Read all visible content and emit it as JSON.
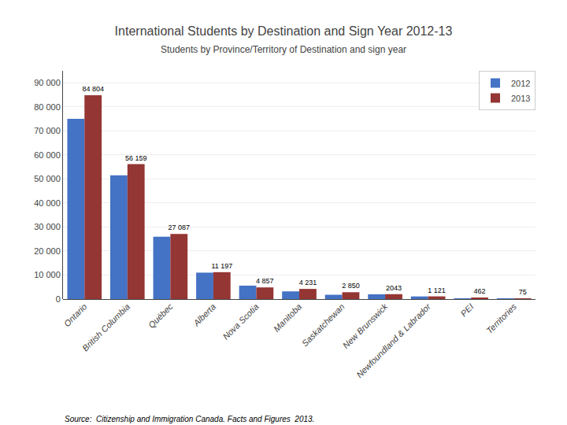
{
  "chart_data": {
    "type": "bar",
    "title": "International Students by Destination and Sign Year 2012-13",
    "subtitle": "Students by Province/Territory of Destination and sign year",
    "annotations": [
      "Source:  Citizenship and Immigration Canada. Facts and Figures  2013."
    ],
    "categories": [
      "Ontario",
      "British Columbia",
      "Québec",
      "Alberta",
      "Nova Scotia",
      "Manitoba",
      "Saskatchewan",
      "New Brunswick",
      "Newfoundland & Labrador",
      "PEI",
      "Territories"
    ],
    "series": [
      {
        "name": "2012",
        "color": "#4472C4",
        "values": [
          75000,
          51500,
          26000,
          11000,
          5600,
          3200,
          1800,
          2000,
          1100,
          300,
          50
        ]
      },
      {
        "name": "2013",
        "color": "#943634",
        "values": [
          84804,
          56159,
          27087,
          11197,
          4857,
          4231,
          2850,
          2043,
          1121,
          462,
          75
        ],
        "data_labels": true,
        "value_labels": [
          "84 804",
          "56 159",
          "27 087",
          "11 197",
          "4 857",
          "4 231",
          "2 850",
          "2043",
          "1 121",
          "462",
          "75"
        ]
      }
    ],
    "ylim": [
      0,
      95000
    ],
    "yticks": [
      0,
      {
        "value": 10000,
        "label": "10 000"
      },
      {
        "value": 20000,
        "label": "20 000"
      },
      {
        "value": 30000,
        "label": "30 000"
      },
      {
        "value": 40000,
        "label": "40 000"
      },
      {
        "value": 50000,
        "label": "50 000"
      },
      {
        "value": 60000,
        "label": "60 000"
      },
      {
        "value": 70000,
        "label": "70 000"
      },
      {
        "value": 80000,
        "label": "80 000"
      },
      {
        "value": 90000,
        "label": "90 000"
      }
    ],
    "grid": true,
    "legend": "upper right"
  }
}
